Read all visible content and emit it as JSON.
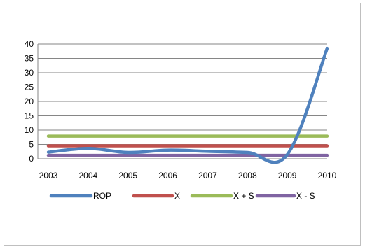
{
  "chart_data": {
    "type": "line",
    "title": "",
    "xlabel": "",
    "ylabel": "",
    "categories": [
      "2003",
      "2004",
      "2005",
      "2006",
      "2007",
      "2008",
      "2009",
      "2010"
    ],
    "ylim": [
      0,
      40
    ],
    "yticks": [
      0,
      5,
      10,
      15,
      20,
      25,
      30,
      35,
      40
    ],
    "grid": true,
    "legend_position": "bottom",
    "series": [
      {
        "name": "ROP",
        "color": "#4f81bd",
        "values": [
          2.3,
          3.6,
          2.2,
          3.0,
          2.6,
          2.2,
          1.5,
          38.5
        ]
      },
      {
        "name": "X",
        "color": "#c0504d",
        "values": [
          4.5,
          4.5,
          4.5,
          4.5,
          4.5,
          4.5,
          4.5,
          4.5
        ]
      },
      {
        "name": "X + S",
        "color": "#9bbb59",
        "values": [
          7.9,
          7.9,
          7.9,
          7.9,
          7.9,
          7.9,
          7.9,
          7.9
        ]
      },
      {
        "name": "X - S",
        "color": "#8064a2",
        "values": [
          1.2,
          1.2,
          1.2,
          1.2,
          1.2,
          1.2,
          1.2,
          1.2
        ]
      }
    ]
  }
}
